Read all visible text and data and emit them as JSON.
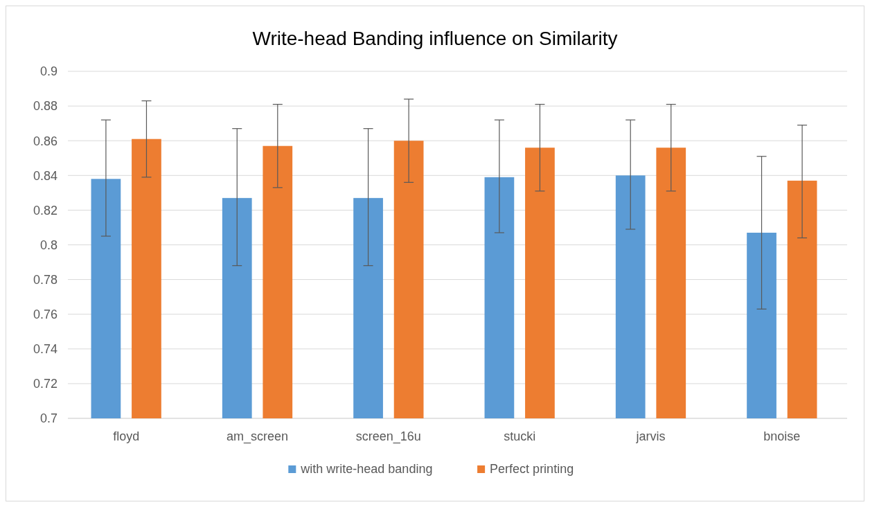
{
  "chart_data": {
    "type": "bar",
    "title": "Write-head Banding influence on Similarity",
    "categories": [
      "floyd",
      "am_screen",
      "screen_16u",
      "stucki",
      "jarvis",
      "bnoise"
    ],
    "series": [
      {
        "name": "with write-head banding",
        "color": "#5b9bd5",
        "values": [
          0.838,
          0.827,
          0.827,
          0.839,
          0.84,
          0.807
        ],
        "errors": [
          [
            0.805,
            0.872
          ],
          [
            0.788,
            0.867
          ],
          [
            0.788,
            0.867
          ],
          [
            0.807,
            0.872
          ],
          [
            0.809,
            0.872
          ],
          [
            0.763,
            0.851
          ]
        ]
      },
      {
        "name": "Perfect printing",
        "color": "#ed7d31",
        "values": [
          0.861,
          0.857,
          0.86,
          0.856,
          0.856,
          0.837
        ],
        "errors": [
          [
            0.839,
            0.883
          ],
          [
            0.833,
            0.881
          ],
          [
            0.836,
            0.884
          ],
          [
            0.831,
            0.881
          ],
          [
            0.831,
            0.881
          ],
          [
            0.804,
            0.869
          ]
        ]
      }
    ],
    "ylim": [
      0.7,
      0.9
    ],
    "yticks": [
      0.7,
      0.72,
      0.74,
      0.76,
      0.78,
      0.8,
      0.82,
      0.84,
      0.86,
      0.88,
      0.9
    ],
    "grid": "y",
    "legend": "bottom"
  }
}
